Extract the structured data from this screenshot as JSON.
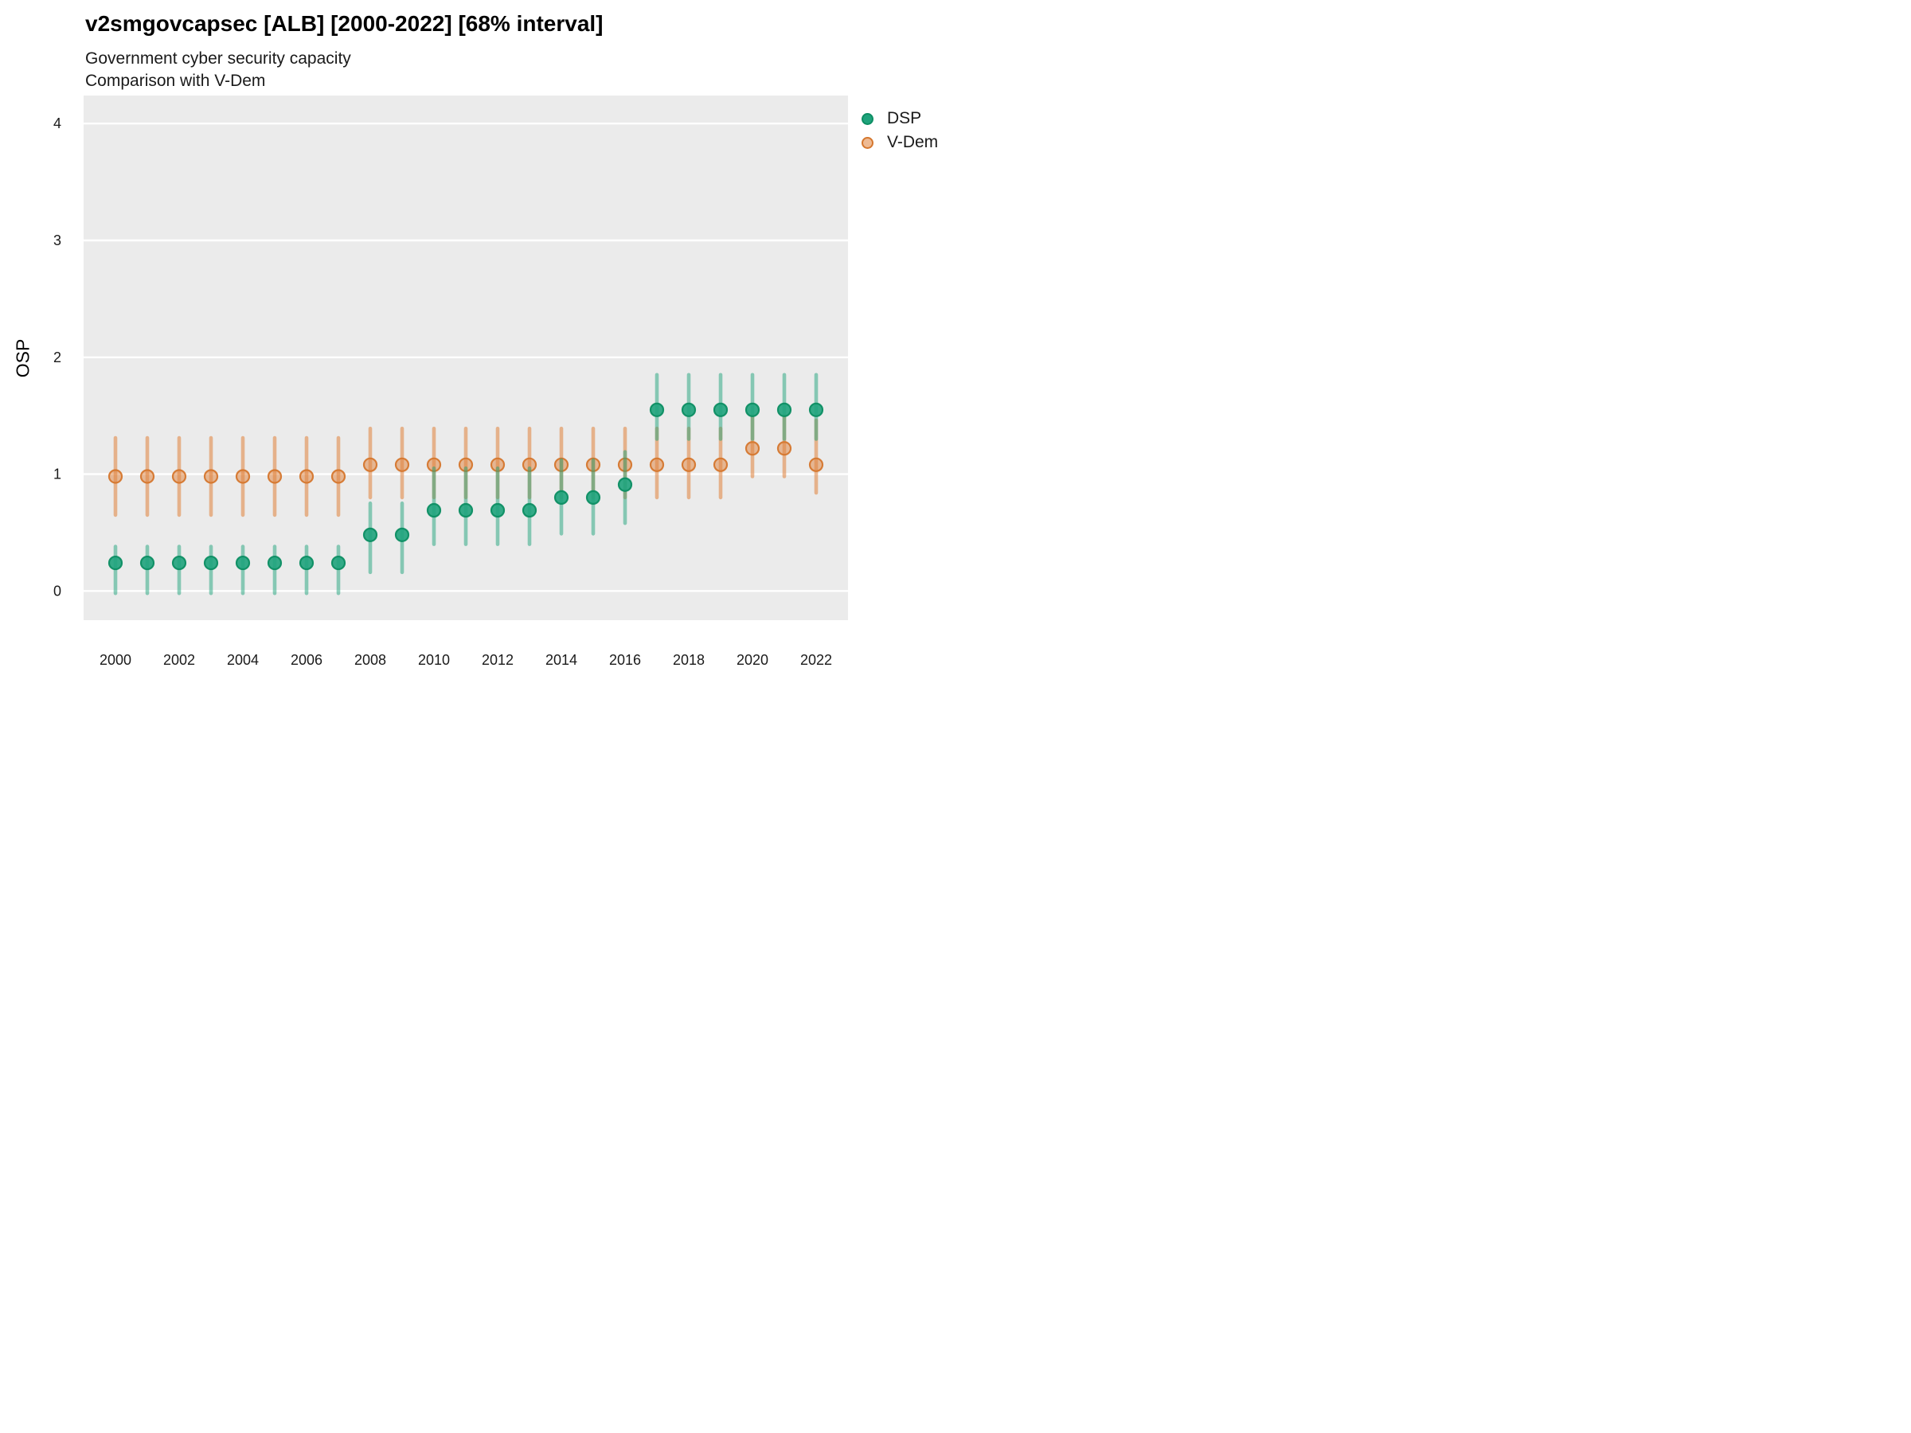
{
  "header": {
    "title": "v2smgovcapsec [ALB] [2000-2022] [68% interval]",
    "subtitle1": "Government cyber security capacity",
    "subtitle2": "Comparison with V-Dem"
  },
  "legend": {
    "items": [
      {
        "id": "dsp",
        "label": "DSP"
      },
      {
        "id": "vdem",
        "label": "V-Dem"
      }
    ]
  },
  "chart_data": {
    "type": "scatter",
    "variant": "pointrange",
    "title": "v2smgovcapsec [ALB] [2000-2022] [68% interval]",
    "subtitle": [
      "Government cyber security capacity",
      "Comparison with V-Dem"
    ],
    "xlabel": "",
    "ylabel": "OSP",
    "interval_level": "68%",
    "x_domain": [
      1999,
      2023
    ],
    "y_domain": [
      -0.25,
      4.24
    ],
    "x_ticks": [
      2000,
      2002,
      2004,
      2006,
      2008,
      2010,
      2012,
      2014,
      2016,
      2018,
      2020,
      2022
    ],
    "y_ticks": [
      0,
      1,
      2,
      3,
      4
    ],
    "grid": "major-y",
    "legend_position": "right",
    "panel_bg": "#EBEBEB",
    "grid_color": "#FFFFFF",
    "axis_text_color": "#1a1a1a",
    "series": [
      {
        "name": "DSP",
        "color": "#1FA37C",
        "point_stroke": "#0D8E63",
        "line_opacity": 0.5,
        "point_fill_opacity": 0.9,
        "points": [
          {
            "x": 2000,
            "y": 0.24,
            "lo": -0.02,
            "hi": 0.38
          },
          {
            "x": 2001,
            "y": 0.24,
            "lo": -0.02,
            "hi": 0.38
          },
          {
            "x": 2002,
            "y": 0.24,
            "lo": -0.02,
            "hi": 0.38
          },
          {
            "x": 2003,
            "y": 0.24,
            "lo": -0.02,
            "hi": 0.38
          },
          {
            "x": 2004,
            "y": 0.24,
            "lo": -0.02,
            "hi": 0.38
          },
          {
            "x": 2005,
            "y": 0.24,
            "lo": -0.02,
            "hi": 0.38
          },
          {
            "x": 2006,
            "y": 0.24,
            "lo": -0.02,
            "hi": 0.38
          },
          {
            "x": 2007,
            "y": 0.24,
            "lo": -0.02,
            "hi": 0.38
          },
          {
            "x": 2008,
            "y": 0.48,
            "lo": 0.16,
            "hi": 0.75
          },
          {
            "x": 2009,
            "y": 0.48,
            "lo": 0.16,
            "hi": 0.75
          },
          {
            "x": 2010,
            "y": 0.69,
            "lo": 0.4,
            "hi": 1.05
          },
          {
            "x": 2011,
            "y": 0.69,
            "lo": 0.4,
            "hi": 1.05
          },
          {
            "x": 2012,
            "y": 0.69,
            "lo": 0.4,
            "hi": 1.05
          },
          {
            "x": 2013,
            "y": 0.69,
            "lo": 0.4,
            "hi": 1.05
          },
          {
            "x": 2014,
            "y": 0.8,
            "lo": 0.49,
            "hi": 1.12
          },
          {
            "x": 2015,
            "y": 0.8,
            "lo": 0.49,
            "hi": 1.12
          },
          {
            "x": 2016,
            "y": 0.91,
            "lo": 0.58,
            "hi": 1.19
          },
          {
            "x": 2017,
            "y": 1.55,
            "lo": 1.3,
            "hi": 1.85
          },
          {
            "x": 2018,
            "y": 1.55,
            "lo": 1.3,
            "hi": 1.85
          },
          {
            "x": 2019,
            "y": 1.55,
            "lo": 1.3,
            "hi": 1.85
          },
          {
            "x": 2020,
            "y": 1.55,
            "lo": 1.3,
            "hi": 1.85
          },
          {
            "x": 2021,
            "y": 1.55,
            "lo": 1.3,
            "hi": 1.85
          },
          {
            "x": 2022,
            "y": 1.55,
            "lo": 1.3,
            "hi": 1.85
          }
        ]
      },
      {
        "name": "V-Dem",
        "color": "#E0813B",
        "point_stroke": "#D5772E",
        "line_opacity": 0.55,
        "point_fill_opacity": 0.5,
        "points": [
          {
            "x": 2000,
            "y": 0.98,
            "lo": 0.65,
            "hi": 1.31
          },
          {
            "x": 2001,
            "y": 0.98,
            "lo": 0.65,
            "hi": 1.31
          },
          {
            "x": 2002,
            "y": 0.98,
            "lo": 0.65,
            "hi": 1.31
          },
          {
            "x": 2003,
            "y": 0.98,
            "lo": 0.65,
            "hi": 1.31
          },
          {
            "x": 2004,
            "y": 0.98,
            "lo": 0.65,
            "hi": 1.31
          },
          {
            "x": 2005,
            "y": 0.98,
            "lo": 0.65,
            "hi": 1.31
          },
          {
            "x": 2006,
            "y": 0.98,
            "lo": 0.65,
            "hi": 1.31
          },
          {
            "x": 2007,
            "y": 0.98,
            "lo": 0.65,
            "hi": 1.31
          },
          {
            "x": 2008,
            "y": 1.08,
            "lo": 0.8,
            "hi": 1.39
          },
          {
            "x": 2009,
            "y": 1.08,
            "lo": 0.8,
            "hi": 1.39
          },
          {
            "x": 2010,
            "y": 1.08,
            "lo": 0.8,
            "hi": 1.39
          },
          {
            "x": 2011,
            "y": 1.08,
            "lo": 0.8,
            "hi": 1.39
          },
          {
            "x": 2012,
            "y": 1.08,
            "lo": 0.8,
            "hi": 1.39
          },
          {
            "x": 2013,
            "y": 1.08,
            "lo": 0.8,
            "hi": 1.39
          },
          {
            "x": 2014,
            "y": 1.08,
            "lo": 0.8,
            "hi": 1.39
          },
          {
            "x": 2015,
            "y": 1.08,
            "lo": 0.8,
            "hi": 1.39
          },
          {
            "x": 2016,
            "y": 1.08,
            "lo": 0.8,
            "hi": 1.39
          },
          {
            "x": 2017,
            "y": 1.08,
            "lo": 0.8,
            "hi": 1.39
          },
          {
            "x": 2018,
            "y": 1.08,
            "lo": 0.8,
            "hi": 1.39
          },
          {
            "x": 2019,
            "y": 1.08,
            "lo": 0.8,
            "hi": 1.39
          },
          {
            "x": 2020,
            "y": 1.22,
            "lo": 0.98,
            "hi": 1.5
          },
          {
            "x": 2021,
            "y": 1.22,
            "lo": 0.98,
            "hi": 1.5
          },
          {
            "x": 2022,
            "y": 1.08,
            "lo": 0.84,
            "hi": 1.46
          }
        ]
      }
    ]
  }
}
